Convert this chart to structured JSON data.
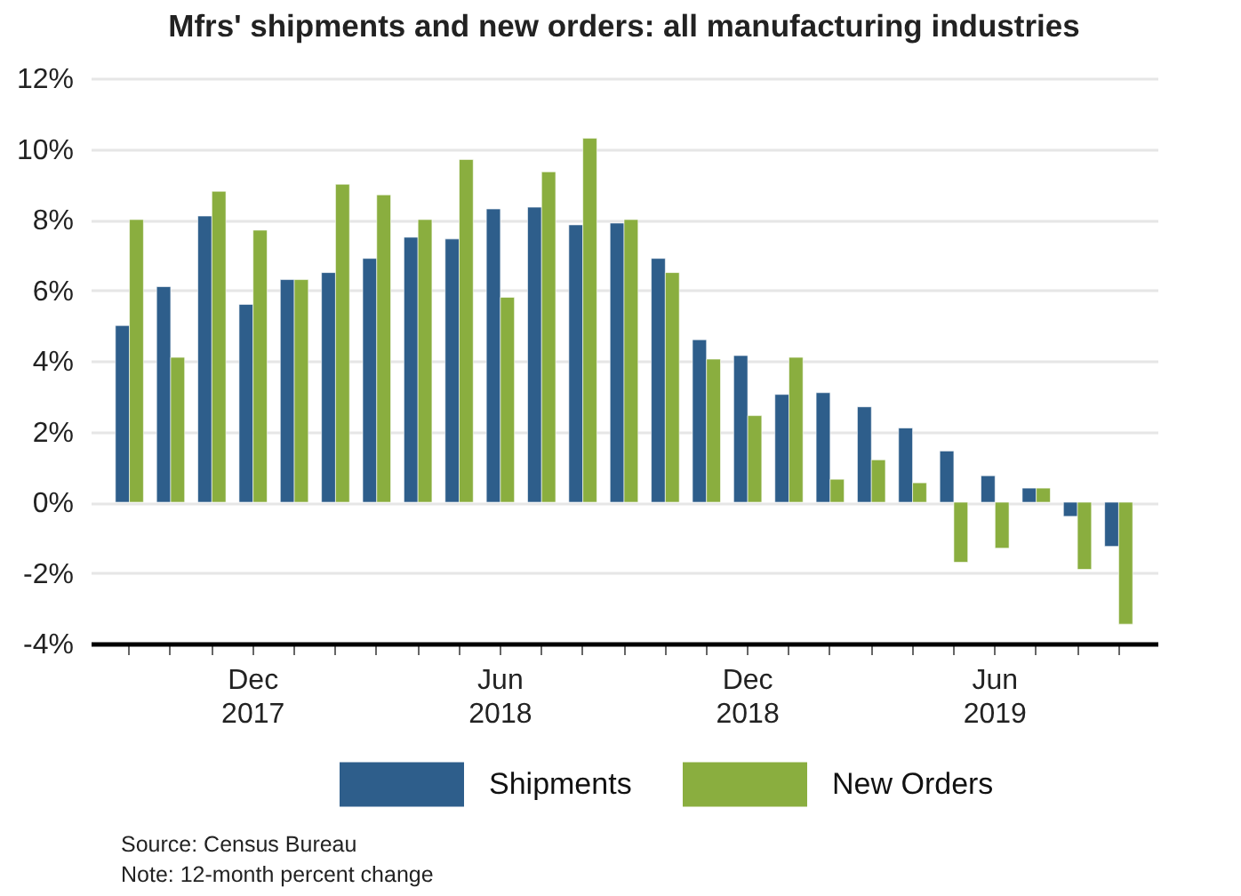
{
  "chart_data": {
    "type": "bar",
    "title": "Mfrs' shipments and new orders: all manufacturing industries",
    "categories": [
      null,
      null,
      null,
      "Dec\n2017",
      null,
      null,
      null,
      null,
      null,
      "Jun\n2018",
      null,
      null,
      null,
      null,
      null,
      "Dec\n2018",
      null,
      null,
      null,
      null,
      null,
      "Jun\n2019",
      null,
      null,
      null
    ],
    "series": [
      {
        "name": "Shipments",
        "color": "#2e5e8b",
        "values": [
          5.0,
          6.1,
          8.1,
          5.6,
          6.3,
          6.5,
          6.9,
          7.5,
          7.45,
          8.3,
          8.35,
          7.85,
          7.9,
          6.9,
          4.6,
          4.15,
          3.05,
          3.1,
          2.7,
          2.1,
          1.45,
          0.75,
          0.4,
          -0.4,
          -1.25
        ]
      },
      {
        "name": "New Orders",
        "color": "#8aae3f",
        "values": [
          8.0,
          4.1,
          8.8,
          7.7,
          6.3,
          9.0,
          8.7,
          8.0,
          9.7,
          5.8,
          9.35,
          10.3,
          8.0,
          6.5,
          4.05,
          2.45,
          4.1,
          0.65,
          1.2,
          0.55,
          -1.7,
          -1.3,
          0.4,
          -1.9,
          -3.45
        ]
      }
    ],
    "ylim": [
      -4,
      12
    ],
    "yticks": [
      {
        "value": -4,
        "label": "-4%"
      },
      {
        "value": -2,
        "label": "-2%"
      },
      {
        "value": 0,
        "label": "0%"
      },
      {
        "value": 2,
        "label": "2%"
      },
      {
        "value": 4,
        "label": "4%"
      },
      {
        "value": 6,
        "label": "6%"
      },
      {
        "value": 8,
        "label": "8%"
      },
      {
        "value": 10,
        "label": "10%"
      },
      {
        "value": 12,
        "label": "12%"
      }
    ],
    "grid": "y",
    "legend": "bottom",
    "annotations": [
      "Source: Census Bureau",
      "Note: 12-month percent change"
    ]
  }
}
